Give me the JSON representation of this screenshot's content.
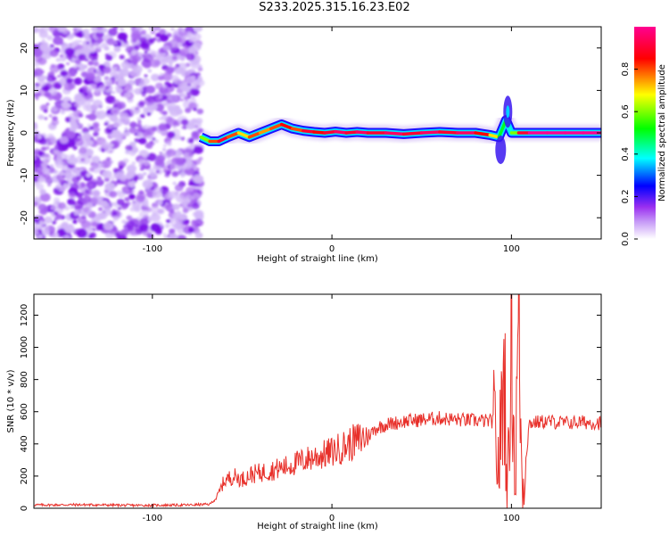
{
  "title": "S233.2025.315.16.23.E02",
  "colors": {
    "snr_line": "#e8302a",
    "cmap": [
      "#ffffff",
      "#a020f0",
      "#0000ff",
      "#00ffff",
      "#00ff00",
      "#ffff00",
      "#ff0000",
      "#ff00aa"
    ]
  },
  "chart_data": [
    {
      "type": "heatmap",
      "title": "",
      "xlabel": "Height of straight line (km)",
      "ylabel": "Frequency (Hz)",
      "xlim": [
        -166,
        150
      ],
      "ylim": [
        -25,
        25
      ],
      "xticks": [
        -100,
        0,
        100
      ],
      "xtick_labels": [
        "-100",
        "0",
        "100"
      ],
      "yticks": [
        -20,
        -10,
        0,
        10,
        20
      ],
      "ytick_labels": [
        "-20",
        "-10",
        "0",
        "10",
        "20"
      ],
      "colorbar": {
        "label": "Normalized spectral amplitude",
        "range": [
          0,
          1
        ],
        "ticks": [
          0.0,
          0.2,
          0.4,
          0.6,
          0.8
        ],
        "tick_labels": [
          "0.0",
          "0.2",
          "0.4",
          "0.6",
          "0.8"
        ]
      },
      "noise_region_x": [
        -166,
        -73
      ],
      "ridge": {
        "x": [
          -73,
          -68,
          -63,
          -58,
          -52,
          -46,
          -40,
          -34,
          -28,
          -22,
          -16,
          -10,
          -4,
          2,
          8,
          14,
          20,
          30,
          40,
          50,
          60,
          70,
          80,
          88,
          93,
          97,
          100,
          104,
          110,
          120,
          130,
          140,
          150
        ],
        "freq": [
          -1,
          -2,
          -2,
          -1,
          0,
          -1,
          0,
          1,
          2,
          1,
          0.5,
          0.2,
          0,
          0.3,
          0,
          0.2,
          0,
          0,
          -0.3,
          0,
          0.2,
          0,
          0,
          -0.5,
          -1,
          3,
          0,
          0,
          0,
          0,
          0,
          0,
          0
        ],
        "amp": [
          0.6,
          0.8,
          0.9,
          0.8,
          0.7,
          0.8,
          0.75,
          0.8,
          0.85,
          0.8,
          0.9,
          0.85,
          0.9,
          0.95,
          0.9,
          0.95,
          0.9,
          0.95,
          0.9,
          0.95,
          0.9,
          0.95,
          0.85,
          0.7,
          0.5,
          0.4,
          0.6,
          0.9,
          1.0,
          1.0,
          1.0,
          1.0,
          1.0
        ]
      }
    },
    {
      "type": "line",
      "title": "",
      "xlabel": "Height of straight line (km)",
      "ylabel": "SNR (10 * v/v)",
      "xlim": [
        -166,
        150
      ],
      "ylim": [
        0,
        1330
      ],
      "xticks": [
        -100,
        0,
        100
      ],
      "xtick_labels": [
        "-100",
        "0",
        "100"
      ],
      "yticks": [
        0,
        200,
        400,
        600,
        800,
        1000,
        1200
      ],
      "ytick_labels": [
        "0",
        "200",
        "400",
        "600",
        "800",
        "1000",
        "1200"
      ],
      "series": [
        {
          "name": "SNR",
          "x": [
            -166,
            -140,
            -110,
            -80,
            -68,
            -64,
            -60,
            -55,
            -50,
            -45,
            -40,
            -32,
            -25,
            -20,
            -15,
            -10,
            -5,
            0,
            10,
            20,
            25,
            30,
            40,
            50,
            60,
            70,
            80,
            90,
            93,
            96,
            98,
            100,
            102,
            104,
            106,
            110,
            120,
            130,
            140,
            150
          ],
          "y": [
            20,
            22,
            18,
            20,
            25,
            70,
            170,
            200,
            180,
            210,
            220,
            240,
            260,
            280,
            300,
            320,
            330,
            350,
            400,
            450,
            500,
            520,
            540,
            550,
            560,
            550,
            545,
            540,
            250,
            900,
            80,
            1330,
            60,
            1270,
            100,
            530,
            540,
            530,
            535,
            530
          ]
        }
      ]
    }
  ]
}
